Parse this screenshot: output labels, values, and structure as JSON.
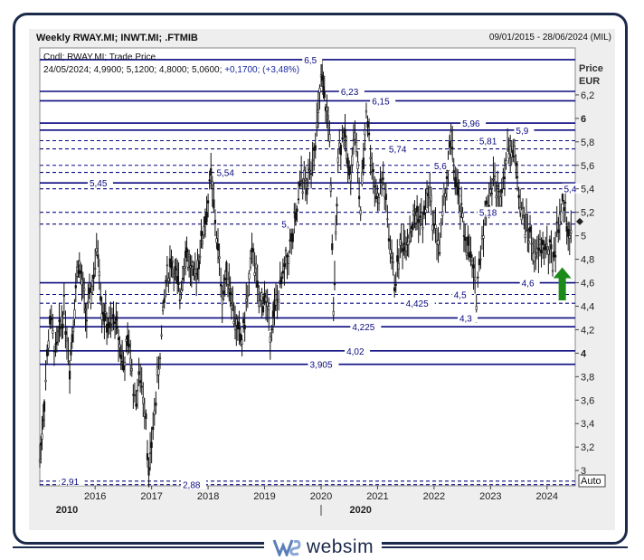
{
  "header": {
    "title": "Weekly RWAY.MI; INWT.MI; .FTMIB",
    "date_range": "09/01/2015 - 28/06/2024 (MIL)"
  },
  "legend": {
    "series_label": "Cndl; RWAY.MI; Trade Price",
    "last_bar": "24/05/2024; 4,9900; 5,1200; 4,8000; 5,0600;",
    "change": "+0,1700; (+3,48%)"
  },
  "axis": {
    "y_title_1": "Price",
    "y_title_2": "EUR",
    "auto_button": "Auto"
  },
  "brand": {
    "name": "websim"
  },
  "chart_data": {
    "type": "candlestick",
    "y_range": [
      2.87,
      6.6
    ],
    "x_range": [
      2015.02,
      2024.5
    ],
    "y_ticks": [
      "6,2",
      "6",
      "5,8",
      "5,6",
      "5,4",
      "5,2",
      "5",
      "4,8",
      "4,6",
      "4,4",
      "4,2",
      "4",
      "3,8",
      "3,6",
      "3,4",
      "3,2",
      "3"
    ],
    "y_tick_values": [
      6.2,
      6.0,
      5.8,
      5.6,
      5.4,
      5.2,
      5.0,
      4.8,
      4.6,
      4.4,
      4.2,
      4.0,
      3.8,
      3.6,
      3.4,
      3.2,
      3.0
    ],
    "bold_ticks": [
      "6",
      "4"
    ],
    "x_ticks": [
      "2016",
      "2017",
      "2018",
      "2019",
      "2020",
      "2021",
      "2022",
      "2023",
      "2024"
    ],
    "x_tick_values": [
      2016,
      2017,
      2018,
      2019,
      2020,
      2021,
      2022,
      2023,
      2024
    ],
    "decade_labels": [
      {
        "label": "2010",
        "x": 2015.5
      },
      {
        "label": "2020",
        "x": 2020.7
      }
    ],
    "levels": [
      {
        "value": 6.5,
        "label": "6,5",
        "style": "solid",
        "label_x": 2019.7
      },
      {
        "value": 6.23,
        "label": "6,23",
        "style": "solid",
        "label_x": 2020.35
      },
      {
        "value": 6.15,
        "label": "6,15",
        "style": "solid",
        "label_x": 2020.9
      },
      {
        "value": 5.96,
        "label": "5,96",
        "style": "solid",
        "label_x": 2022.5
      },
      {
        "value": 5.9,
        "label": "5,9",
        "style": "solid",
        "label_x": 2023.45
      },
      {
        "value": 5.81,
        "label": "5,81",
        "style": "dashed",
        "label_x": 2022.8
      },
      {
        "value": 5.74,
        "label": "5,74",
        "style": "dashed",
        "label_x": 2021.2
      },
      {
        "value": 5.6,
        "label": "5,6",
        "style": "dashed",
        "label_x": 2022.0
      },
      {
        "value": 5.54,
        "label": "5,54",
        "style": "dashed",
        "label_x": 2018.15
      },
      {
        "value": 5.45,
        "label": "5,45",
        "style": "solid",
        "label_x": 2015.9
      },
      {
        "value": 5.4,
        "label": "5,4",
        "style": "dashed",
        "label_x": 2024.3
      },
      {
        "value": 5.2,
        "label": "5,18",
        "style": "dashed",
        "label_x": 2022.8
      },
      {
        "value": 5.1,
        "label": "5,",
        "style": "dashed",
        "label_x": 2019.3
      },
      {
        "value": 4.6,
        "label": "4,6",
        "style": "solid",
        "label_x": 2023.55
      },
      {
        "value": 4.5,
        "label": "4,5",
        "style": "dashed",
        "label_x": 2022.35
      },
      {
        "value": 4.425,
        "label": "4,425",
        "style": "dashed",
        "label_x": 2021.5
      },
      {
        "value": 4.3,
        "label": "4,3",
        "style": "solid",
        "label_x": 2022.45
      },
      {
        "value": 4.225,
        "label": "4,225",
        "style": "solid",
        "label_x": 2020.55
      },
      {
        "value": 4.02,
        "label": "4,02",
        "style": "solid",
        "label_x": 2020.45
      },
      {
        "value": 3.905,
        "label": "3,905",
        "style": "solid",
        "label_x": 2019.8
      },
      {
        "value": 2.91,
        "label": "2,91",
        "style": "dashed",
        "label_x": 2015.4
      },
      {
        "value": 2.88,
        "label": "2,88",
        "style": "dashed",
        "label_x": 2017.55
      }
    ],
    "price_path": [
      [
        2015.02,
        3.1
      ],
      [
        2015.1,
        3.6
      ],
      [
        2015.2,
        4.3
      ],
      [
        2015.3,
        4.0
      ],
      [
        2015.45,
        4.4
      ],
      [
        2015.55,
        3.9
      ],
      [
        2015.7,
        4.8
      ],
      [
        2015.85,
        4.3
      ],
      [
        2015.95,
        4.6
      ],
      [
        2016.05,
        4.9
      ],
      [
        2016.12,
        4.4
      ],
      [
        2016.25,
        4.2
      ],
      [
        2016.35,
        4.3
      ],
      [
        2016.5,
        3.9
      ],
      [
        2016.6,
        4.1
      ],
      [
        2016.7,
        3.6
      ],
      [
        2016.8,
        3.8
      ],
      [
        2016.9,
        3.5
      ],
      [
        2016.95,
        2.95
      ],
      [
        2017.05,
        3.5
      ],
      [
        2017.15,
        4.0
      ],
      [
        2017.25,
        4.6
      ],
      [
        2017.35,
        4.8
      ],
      [
        2017.5,
        4.5
      ],
      [
        2017.6,
        4.9
      ],
      [
        2017.75,
        4.6
      ],
      [
        2017.9,
        5.0
      ],
      [
        2018.0,
        5.3
      ],
      [
        2018.05,
        5.5
      ],
      [
        2018.15,
        5.0
      ],
      [
        2018.25,
        4.5
      ],
      [
        2018.35,
        4.7
      ],
      [
        2018.5,
        4.2
      ],
      [
        2018.6,
        4.1
      ],
      [
        2018.7,
        4.5
      ],
      [
        2018.8,
        4.9
      ],
      [
        2018.9,
        4.4
      ],
      [
        2019.0,
        4.5
      ],
      [
        2019.1,
        4.2
      ],
      [
        2019.2,
        4.4
      ],
      [
        2019.3,
        4.6
      ],
      [
        2019.4,
        4.8
      ],
      [
        2019.5,
        5.0
      ],
      [
        2019.55,
        5.1
      ],
      [
        2019.65,
        5.5
      ],
      [
        2019.75,
        5.4
      ],
      [
        2019.85,
        5.7
      ],
      [
        2019.95,
        6.0
      ],
      [
        2020.0,
        6.35
      ],
      [
        2020.08,
        6.1
      ],
      [
        2020.15,
        5.9
      ],
      [
        2020.22,
        4.3
      ],
      [
        2020.3,
        5.7
      ],
      [
        2020.4,
        5.9
      ],
      [
        2020.5,
        5.5
      ],
      [
        2020.6,
        5.9
      ],
      [
        2020.7,
        5.2
      ],
      [
        2020.8,
        6.1
      ],
      [
        2020.9,
        5.6
      ],
      [
        2021.0,
        5.3
      ],
      [
        2021.1,
        5.5
      ],
      [
        2021.2,
        5.0
      ],
      [
        2021.3,
        4.6
      ],
      [
        2021.4,
        4.9
      ],
      [
        2021.55,
        5.0
      ],
      [
        2021.7,
        5.2
      ],
      [
        2021.8,
        5.1
      ],
      [
        2021.9,
        5.4
      ],
      [
        2022.0,
        5.1
      ],
      [
        2022.1,
        4.9
      ],
      [
        2022.2,
        5.4
      ],
      [
        2022.3,
        5.8
      ],
      [
        2022.4,
        5.4
      ],
      [
        2022.55,
        5.0
      ],
      [
        2022.65,
        4.8
      ],
      [
        2022.75,
        4.5
      ],
      [
        2022.85,
        5.0
      ],
      [
        2022.95,
        5.3
      ],
      [
        2023.05,
        5.5
      ],
      [
        2023.15,
        5.3
      ],
      [
        2023.25,
        5.6
      ],
      [
        2023.35,
        5.8
      ],
      [
        2023.45,
        5.6
      ],
      [
        2023.55,
        5.2
      ],
      [
        2023.7,
        5.0
      ],
      [
        2023.8,
        4.8
      ],
      [
        2023.9,
        4.9
      ],
      [
        2024.0,
        4.9
      ],
      [
        2024.1,
        4.8
      ],
      [
        2024.2,
        5.1
      ],
      [
        2024.3,
        5.3
      ],
      [
        2024.4,
        5.0
      ],
      [
        2024.45,
        5.06
      ]
    ],
    "last_value": 5.06,
    "arrow": {
      "x": 2024.27,
      "from": 4.45,
      "to": 4.7,
      "color": "#1a8a1a"
    },
    "colors": {
      "level": "#0a0a80",
      "price": "#111111",
      "grid": "#dddddd",
      "label": "#0a0a80"
    }
  }
}
